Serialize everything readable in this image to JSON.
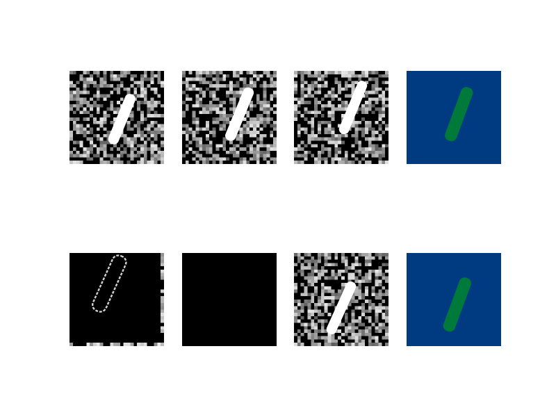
{
  "figure": {
    "layout": "2x4 image grid",
    "panels": [
      {
        "id": "noisy-input-1",
        "kind": "noisy",
        "background": "#000000",
        "stroke_color": "#ffffff",
        "seed": 11
      },
      {
        "id": "noisy-input-2",
        "kind": "noisy",
        "background": "#000000",
        "stroke_color": "#ffffff",
        "seed": 23
      },
      {
        "id": "noisy-input-3",
        "kind": "noisy",
        "background": "#000000",
        "stroke_color": "#ffffff",
        "seed": 37
      },
      {
        "id": "segmentation-mask-1",
        "kind": "mask",
        "background": "#003a80",
        "stroke_color": "#007a3a"
      },
      {
        "id": "edge-map",
        "kind": "edges",
        "background": "#000000",
        "stroke_color": "#d0d0d0"
      },
      {
        "id": "blank-output",
        "kind": "blank",
        "background": "#000000"
      },
      {
        "id": "noisy-input-4",
        "kind": "noisy",
        "background": "#000000",
        "stroke_color": "#ffffff",
        "seed": 53
      },
      {
        "id": "segmentation-mask-2",
        "kind": "mask",
        "background": "#003a80",
        "stroke_color": "#007a3a"
      }
    ]
  }
}
